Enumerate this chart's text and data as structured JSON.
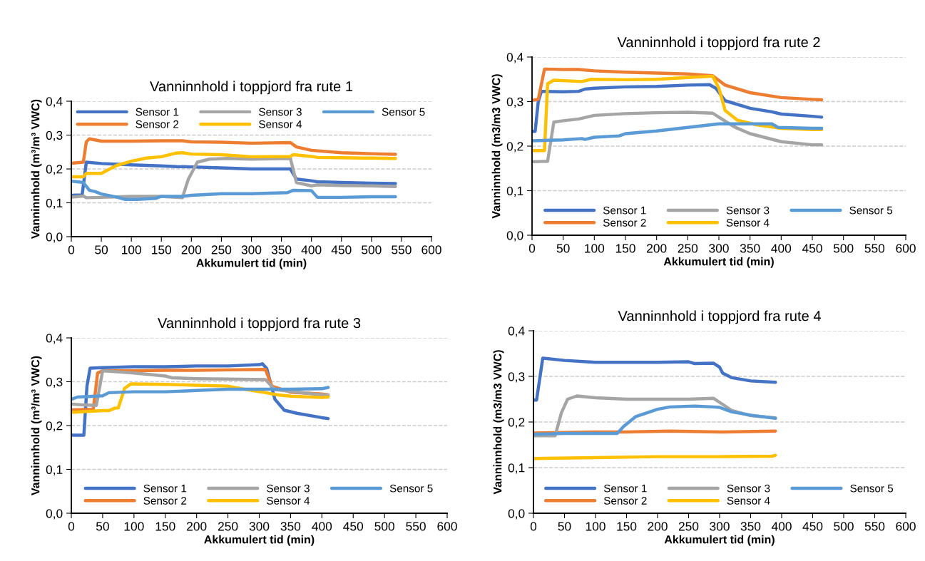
{
  "chart_data": [
    {
      "type": "line",
      "title": "Vanninnhold i toppjord fra rute 1",
      "xlabel": "Akkumulert tid (min)",
      "ylabel": "Vanninnhold (m³/m³ VWC)",
      "xlim": [
        0,
        600
      ],
      "ylim": [
        0,
        0.4
      ],
      "xticks": [
        0,
        50,
        100,
        150,
        200,
        250,
        300,
        350,
        400,
        450,
        500,
        550,
        600
      ],
      "yticks": [
        {
          "value": 0,
          "label": "0,0"
        },
        {
          "value": 0.1,
          "label": "0,1"
        },
        {
          "value": 0.2,
          "label": "0,2"
        },
        {
          "value": 0.3,
          "label": "0,3"
        },
        {
          "value": 0.4,
          "label": "0,4"
        }
      ],
      "grid": "y",
      "legend": "top",
      "line_style": "solid",
      "series": [
        {
          "name": "Sensor 1",
          "color": "#4472c4",
          "x": [
            0,
            18,
            25,
            50,
            100,
            150,
            175,
            200,
            250,
            300,
            365,
            375,
            400,
            410,
            450,
            500,
            540
          ],
          "values": [
            0.122,
            0.123,
            0.22,
            0.216,
            0.212,
            0.209,
            0.207,
            0.206,
            0.203,
            0.2,
            0.2,
            0.17,
            0.165,
            0.162,
            0.16,
            0.158,
            0.157
          ]
        },
        {
          "name": "Sensor 2",
          "color": "#ed7d31",
          "x": [
            0,
            20,
            25,
            30,
            50,
            100,
            150,
            185,
            200,
            250,
            300,
            365,
            375,
            400,
            450,
            500,
            540
          ],
          "values": [
            0.217,
            0.22,
            0.28,
            0.289,
            0.282,
            0.282,
            0.283,
            0.283,
            0.28,
            0.279,
            0.276,
            0.278,
            0.265,
            0.255,
            0.248,
            0.245,
            0.243
          ]
        },
        {
          "name": "Sensor 3",
          "color": "#a5a5a5",
          "x": [
            0,
            20,
            25,
            50,
            100,
            150,
            185,
            195,
            210,
            230,
            260,
            300,
            365,
            375,
            400,
            410,
            450,
            500,
            540
          ],
          "values": [
            0.117,
            0.12,
            0.115,
            0.116,
            0.119,
            0.119,
            0.115,
            0.17,
            0.22,
            0.229,
            0.231,
            0.229,
            0.231,
            0.16,
            0.15,
            0.153,
            0.151,
            0.15,
            0.148
          ]
        },
        {
          "name": "Sensor 4",
          "color": "#ffc000",
          "x": [
            0,
            20,
            25,
            50,
            75,
            100,
            125,
            150,
            175,
            185,
            200,
            250,
            300,
            365,
            370,
            400,
            410,
            450,
            500,
            540
          ],
          "values": [
            0.177,
            0.177,
            0.187,
            0.187,
            0.21,
            0.223,
            0.232,
            0.236,
            0.247,
            0.248,
            0.244,
            0.242,
            0.236,
            0.237,
            0.242,
            0.237,
            0.234,
            0.233,
            0.232,
            0.231
          ]
        },
        {
          "name": "Sensor 5",
          "color": "#5b9bd5",
          "x": [
            0,
            20,
            30,
            40,
            50,
            75,
            90,
            110,
            140,
            150,
            185,
            200,
            250,
            300,
            360,
            370,
            400,
            410,
            450,
            500,
            540
          ],
          "values": [
            0.164,
            0.16,
            0.137,
            0.133,
            0.126,
            0.117,
            0.11,
            0.11,
            0.113,
            0.119,
            0.119,
            0.122,
            0.127,
            0.127,
            0.13,
            0.137,
            0.136,
            0.116,
            0.116,
            0.118,
            0.118
          ]
        }
      ]
    },
    {
      "type": "line",
      "title": "Vanninnhold i toppjord fra rute 2",
      "xlabel": "Akkumulert tid (min)",
      "ylabel": "Vanninnhold (m3/m3 VWC)",
      "xlim": [
        0,
        600
      ],
      "ylim": [
        0,
        0.4
      ],
      "xticks": [
        0,
        50,
        100,
        150,
        200,
        250,
        300,
        350,
        400,
        450,
        500,
        550,
        600
      ],
      "yticks": [
        {
          "value": 0,
          "label": "0,0"
        },
        {
          "value": 0.1,
          "label": "0,1"
        },
        {
          "value": 0.2,
          "label": "0,2"
        },
        {
          "value": 0.3,
          "label": "0,3"
        },
        {
          "value": 0.4,
          "label": "0,4"
        }
      ],
      "grid": "y",
      "legend": "bottom",
      "line_style": "solid",
      "series": [
        {
          "name": "Sensor 1",
          "color": "#4472c4",
          "x": [
            0,
            5,
            10,
            15,
            50,
            75,
            85,
            100,
            150,
            200,
            250,
            285,
            295,
            310,
            350,
            385,
            400,
            450,
            465
          ],
          "values": [
            0.233,
            0.233,
            0.3,
            0.323,
            0.322,
            0.323,
            0.328,
            0.33,
            0.333,
            0.334,
            0.337,
            0.338,
            0.33,
            0.302,
            0.285,
            0.277,
            0.272,
            0.267,
            0.265
          ]
        },
        {
          "name": "Sensor 2",
          "color": "#ed7d31",
          "x": [
            0,
            10,
            20,
            50,
            75,
            100,
            150,
            200,
            250,
            290,
            310,
            350,
            400,
            450,
            465
          ],
          "values": [
            0.303,
            0.305,
            0.373,
            0.372,
            0.372,
            0.369,
            0.366,
            0.364,
            0.362,
            0.358,
            0.337,
            0.32,
            0.309,
            0.305,
            0.304
          ]
        },
        {
          "name": "Sensor 3",
          "color": "#a5a5a5",
          "x": [
            0,
            25,
            35,
            50,
            75,
            100,
            150,
            200,
            250,
            290,
            300,
            325,
            350,
            400,
            450,
            465
          ],
          "values": [
            0.165,
            0.166,
            0.254,
            0.257,
            0.261,
            0.269,
            0.273,
            0.275,
            0.276,
            0.274,
            0.265,
            0.243,
            0.228,
            0.21,
            0.203,
            0.203
          ]
        },
        {
          "name": "Sensor 4",
          "color": "#ffc000",
          "x": [
            0,
            20,
            25,
            35,
            80,
            95,
            150,
            200,
            250,
            290,
            300,
            310,
            330,
            360,
            400,
            450,
            465
          ],
          "values": [
            0.19,
            0.19,
            0.34,
            0.348,
            0.345,
            0.35,
            0.349,
            0.35,
            0.354,
            0.357,
            0.33,
            0.28,
            0.258,
            0.248,
            0.24,
            0.237,
            0.237
          ]
        },
        {
          "name": "Sensor 5",
          "color": "#5b9bd5",
          "x": [
            0,
            50,
            80,
            85,
            100,
            140,
            150,
            200,
            250,
            300,
            350,
            385,
            395,
            450,
            465
          ],
          "values": [
            0.212,
            0.214,
            0.217,
            0.215,
            0.22,
            0.223,
            0.228,
            0.234,
            0.242,
            0.25,
            0.25,
            0.25,
            0.242,
            0.24,
            0.24
          ]
        }
      ]
    },
    {
      "type": "line",
      "title": "Vanninnhold i toppjord fra rute 3",
      "xlabel": "Akkumulert tid (min)",
      "ylabel": "Vanninnhold (m³/m³ VWC)",
      "xlim": [
        0,
        600
      ],
      "ylim": [
        0,
        0.4
      ],
      "xticks": [
        0,
        50,
        100,
        150,
        200,
        250,
        300,
        350,
        400,
        450,
        500,
        550,
        600
      ],
      "yticks": [
        {
          "value": 0,
          "label": "0,0"
        },
        {
          "value": 0.1,
          "label": "0,1"
        },
        {
          "value": 0.2,
          "label": "0,2"
        },
        {
          "value": 0.3,
          "label": "0,3"
        },
        {
          "value": 0.4,
          "label": "0,4"
        }
      ],
      "grid": "y",
      "legend": "bottom",
      "line_style": "solid",
      "series": [
        {
          "name": "Sensor 1",
          "color": "#4472c4",
          "x": [
            0,
            20,
            25,
            30,
            50,
            100,
            150,
            200,
            250,
            300,
            305,
            312,
            325,
            340,
            360,
            400,
            410
          ],
          "values": [
            0.178,
            0.178,
            0.29,
            0.331,
            0.332,
            0.334,
            0.334,
            0.336,
            0.336,
            0.339,
            0.341,
            0.33,
            0.26,
            0.235,
            0.228,
            0.218,
            0.216
          ]
        },
        {
          "name": "Sensor 2",
          "color": "#ed7d31",
          "x": [
            0,
            35,
            42,
            50,
            100,
            150,
            200,
            250,
            310,
            320,
            350,
            400,
            410
          ],
          "values": [
            0.236,
            0.237,
            0.32,
            0.325,
            0.325,
            0.326,
            0.326,
            0.327,
            0.328,
            0.29,
            0.276,
            0.272,
            0.27
          ]
        },
        {
          "name": "Sensor 3",
          "color": "#a5a5a5",
          "x": [
            0,
            20,
            40,
            50,
            100,
            150,
            160,
            200,
            250,
            310,
            325,
            350,
            400,
            410
          ],
          "values": [
            0.249,
            0.247,
            0.246,
            0.325,
            0.32,
            0.313,
            0.309,
            0.307,
            0.306,
            0.305,
            0.282,
            0.278,
            0.27,
            0.27
          ]
        },
        {
          "name": "Sensor 4",
          "color": "#ffc000",
          "x": [
            0,
            50,
            60,
            70,
            75,
            85,
            95,
            150,
            200,
            250,
            280,
            310,
            330,
            350,
            400,
            410
          ],
          "values": [
            0.23,
            0.234,
            0.234,
            0.24,
            0.24,
            0.285,
            0.295,
            0.294,
            0.292,
            0.29,
            0.282,
            0.275,
            0.27,
            0.267,
            0.264,
            0.265
          ]
        },
        {
          "name": "Sensor 5",
          "color": "#5b9bd5",
          "x": [
            0,
            10,
            50,
            60,
            100,
            150,
            200,
            250,
            300,
            350,
            400,
            410
          ],
          "values": [
            0.26,
            0.265,
            0.268,
            0.275,
            0.277,
            0.277,
            0.28,
            0.283,
            0.283,
            0.283,
            0.284,
            0.287
          ]
        }
      ]
    },
    {
      "type": "line",
      "title": "Vanninnhold i toppjord fra rute 4",
      "xlabel": "Akkumulert tid (min)",
      "ylabel": "Vanninnhold (m3/m3 VWC)",
      "xlim": [
        0,
        600
      ],
      "ylim": [
        0,
        0.4
      ],
      "xticks": [
        0,
        50,
        100,
        150,
        200,
        250,
        300,
        350,
        400,
        450,
        500,
        550,
        600
      ],
      "yticks": [
        {
          "value": 0,
          "label": "0,0"
        },
        {
          "value": 0.1,
          "label": "0,1"
        },
        {
          "value": 0.2,
          "label": "0,2"
        },
        {
          "value": 0.3,
          "label": "0,3"
        },
        {
          "value": 0.4,
          "label": "0,4"
        }
      ],
      "grid": "y",
      "legend": "bottom",
      "line_style": "solid",
      "series": [
        {
          "name": "Sensor 1",
          "color": "#4472c4",
          "x": [
            0,
            5,
            15,
            50,
            100,
            150,
            200,
            250,
            260,
            290,
            300,
            305,
            320,
            350,
            390
          ],
          "values": [
            0.248,
            0.248,
            0.34,
            0.335,
            0.331,
            0.331,
            0.331,
            0.332,
            0.328,
            0.329,
            0.32,
            0.307,
            0.297,
            0.29,
            0.287
          ]
        },
        {
          "name": "Sensor 2",
          "color": "#ed7d31",
          "x": [
            0,
            100,
            150,
            220,
            300,
            390
          ],
          "values": [
            0.176,
            0.178,
            0.178,
            0.18,
            0.178,
            0.18
          ]
        },
        {
          "name": "Sensor 3",
          "color": "#a5a5a5",
          "x": [
            0,
            35,
            45,
            55,
            70,
            100,
            150,
            200,
            250,
            290,
            300,
            320,
            350,
            390
          ],
          "values": [
            0.17,
            0.17,
            0.22,
            0.25,
            0.257,
            0.253,
            0.25,
            0.25,
            0.25,
            0.252,
            0.243,
            0.225,
            0.214,
            0.209
          ]
        },
        {
          "name": "Sensor 4",
          "color": "#ffc000",
          "x": [
            0,
            100,
            200,
            300,
            385,
            390
          ],
          "values": [
            0.12,
            0.122,
            0.124,
            0.124,
            0.125,
            0.127
          ]
        },
        {
          "name": "Sensor 5",
          "color": "#5b9bd5",
          "x": [
            0,
            50,
            135,
            145,
            165,
            200,
            220,
            260,
            290,
            300,
            320,
            350,
            390
          ],
          "values": [
            0.173,
            0.175,
            0.175,
            0.19,
            0.212,
            0.228,
            0.233,
            0.235,
            0.233,
            0.232,
            0.222,
            0.215,
            0.208
          ]
        }
      ]
    }
  ]
}
